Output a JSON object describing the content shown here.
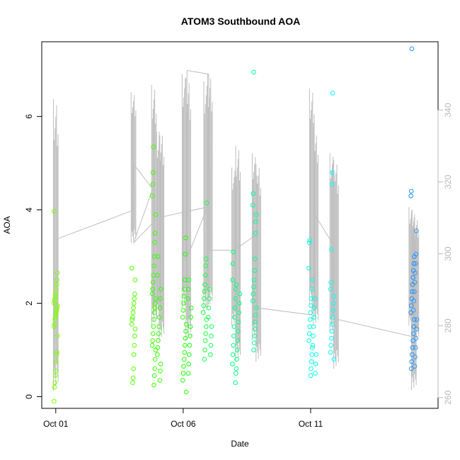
{
  "chart_data": {
    "type": "scatter",
    "title": "ATOM3 Southbound AOA",
    "xlabel": "Date",
    "ylabel": "AOA",
    "x_ticks": [
      "Oct 01",
      "Oct 06",
      "Oct 11"
    ],
    "x_tick_days": [
      0,
      5,
      10
    ],
    "xlim_days": [
      -0.55,
      15
    ],
    "ylim_left": [
      -0.25,
      7.6
    ],
    "y_ticks_left": [
      0,
      2,
      4,
      6
    ],
    "ylim_right": [
      257,
      359
    ],
    "y_ticks_right": [
      260,
      280,
      300,
      320,
      340
    ],
    "grid": false,
    "series": [
      {
        "values": [
          {
            "day": 0.0,
            "aoa": [
              -0.1,
              0.2,
              0.3,
              0.45,
              0.55,
              0.75,
              0.9,
              0.95,
              1.3,
              1.5,
              1.55,
              1.65,
              1.7,
              1.75,
              1.8,
              1.85,
              1.9,
              1.95,
              2.0,
              2.05,
              2.1,
              2.15,
              2.2,
              2.3,
              2.4,
              2.5,
              2.65,
              3.97
            ],
            "color": "#7FFF00"
          },
          {
            "day": 3.05,
            "aoa": [
              0.3,
              0.4,
              0.6,
              0.9,
              1.1,
              1.3,
              1.45,
              1.55,
              1.65,
              1.7,
              1.8,
              1.9,
              2.0,
              2.1,
              2.2,
              2.5,
              2.75
            ],
            "color": "#55FF00"
          },
          {
            "day": 3.85,
            "aoa": [
              0.25,
              0.45,
              0.6,
              0.8,
              1.0,
              1.1,
              1.2,
              1.35,
              1.5,
              1.65,
              1.8,
              1.9,
              2.0,
              2.1,
              2.2,
              2.3,
              2.45,
              2.6,
              2.8,
              3.0,
              3.3,
              3.5,
              3.9,
              4.3,
              4.55,
              4.8,
              5.35
            ],
            "color": "#3CFF00"
          },
          {
            "day": 4.05,
            "aoa": [
              0.35,
              0.55,
              0.7,
              0.9,
              1.05,
              1.2,
              1.35,
              1.5,
              1.7,
              1.9,
              2.1,
              2.3,
              2.6,
              3.0
            ],
            "color": "#2DFF00"
          },
          {
            "day": 5.05,
            "aoa": [
              0.1,
              0.35,
              0.5,
              0.65,
              0.8,
              0.95,
              1.1,
              1.25,
              1.4,
              1.55,
              1.7,
              1.85,
              2.0,
              2.15,
              2.3,
              2.5,
              3.05,
              3.4
            ],
            "color": "#22FF00"
          },
          {
            "day": 5.25,
            "aoa": [
              0.5,
              0.7,
              0.9,
              1.1,
              1.3,
              1.5,
              1.7,
              1.9,
              2.1,
              2.3,
              2.5
            ],
            "color": "#19FF10"
          },
          {
            "day": 5.85,
            "aoa": [
              0.8,
              1.0,
              1.2,
              1.35,
              1.5,
              1.65,
              1.8,
              1.95,
              2.1,
              2.25,
              2.4,
              2.6,
              2.8,
              2.95,
              4.15
            ],
            "color": "#14FF40"
          },
          {
            "day": 6.05,
            "aoa": [
              0.9,
              1.1,
              1.3,
              1.5,
              1.7,
              1.9,
              2.1,
              2.3
            ],
            "color": "#10FF55"
          },
          {
            "day": 7.0,
            "aoa": [
              0.3,
              0.5,
              0.7,
              0.9,
              1.1,
              1.3,
              1.5,
              1.7,
              1.9,
              2.1,
              2.3,
              2.5,
              2.85,
              3.1
            ],
            "color": "#00FF80"
          },
          {
            "day": 7.15,
            "aoa": [
              0.6,
              0.8,
              1.0,
              1.2,
              1.4,
              1.6,
              1.8,
              2.0,
              2.2,
              2.4
            ],
            "color": "#00FF88"
          },
          {
            "day": 7.8,
            "aoa": [
              1.0,
              1.15,
              1.3,
              1.45,
              1.6,
              1.75,
              1.9,
              2.05,
              2.2,
              2.35,
              2.5,
              2.7,
              2.95,
              3.5,
              3.75,
              3.9,
              4.1,
              4.35,
              6.95
            ],
            "color": "#00FF99"
          },
          {
            "day": 10.0,
            "aoa": [
              0.45,
              0.6,
              0.75,
              0.9,
              1.05,
              1.2,
              1.35,
              1.5,
              1.65,
              1.8,
              1.95,
              2.1,
              2.3,
              2.5,
              2.75,
              3.3,
              3.35
            ],
            "color": "#00FFE0"
          },
          {
            "day": 10.15,
            "aoa": [
              0.5,
              0.7,
              0.9,
              1.1,
              1.3,
              1.5,
              1.7,
              1.9,
              2.1
            ],
            "color": "#00FFEA"
          },
          {
            "day": 10.85,
            "aoa": [
              0.8,
              0.95,
              1.1,
              1.25,
              1.4,
              1.55,
              1.7,
              1.85,
              2.0,
              2.15,
              2.3,
              2.45,
              3.15,
              4.55,
              4.8,
              6.5
            ],
            "color": "#00FFFF"
          },
          {
            "day": 14.0,
            "aoa": [
              0.6,
              0.75,
              0.9,
              1.05,
              1.2,
              1.35,
              1.5,
              1.65,
              1.8,
              1.95,
              2.1,
              2.25,
              2.4,
              2.55,
              2.7,
              2.85,
              3.0,
              4.3,
              4.4,
              7.45
            ],
            "color": "#1E90FF"
          },
          {
            "day": 14.1,
            "aoa": [
              0.65,
              0.85,
              1.05,
              1.25,
              1.45,
              1.65,
              1.85,
              2.05,
              2.25,
              2.45,
              2.65,
              2.85,
              3.05,
              3.55
            ],
            "color": "#2C9CFF"
          }
        ]
      },
      {
        "color": "#bebebe",
        "axis": "right",
        "values": [
          {
            "day": 0.0,
            "low": 262,
            "high": 343
          },
          {
            "day": 3.05,
            "low": 303,
            "high": 345
          },
          {
            "day": 3.85,
            "low": 280,
            "high": 347
          },
          {
            "day": 4.05,
            "low": 282,
            "high": 334
          },
          {
            "day": 4.15,
            "low": 276,
            "high": 334
          },
          {
            "day": 5.05,
            "low": 285,
            "high": 350
          },
          {
            "day": 5.2,
            "low": 276,
            "high": 349
          },
          {
            "day": 5.9,
            "low": 284,
            "high": 348
          },
          {
            "day": 6.05,
            "low": 285,
            "high": 350
          },
          {
            "day": 7.0,
            "low": 280,
            "high": 324
          },
          {
            "day": 7.15,
            "low": 270,
            "high": 330
          },
          {
            "day": 7.8,
            "low": 276,
            "high": 328
          },
          {
            "day": 7.95,
            "low": 270,
            "high": 325
          },
          {
            "day": 10.05,
            "low": 286,
            "high": 346
          },
          {
            "day": 10.2,
            "low": 280,
            "high": 334
          },
          {
            "day": 10.85,
            "low": 278,
            "high": 328
          },
          {
            "day": 11.0,
            "low": 268,
            "high": 326
          },
          {
            "day": 13.95,
            "low": 280,
            "high": 313
          },
          {
            "day": 14.05,
            "low": 262,
            "high": 312
          },
          {
            "day": 14.15,
            "low": 276,
            "high": 310
          }
        ],
        "path": [
          {
            "day": 0.0,
            "val": 304
          },
          {
            "day": 3.0,
            "val": 312
          },
          {
            "day": 3.05,
            "val": 325
          },
          {
            "day": 3.8,
            "val": 318
          },
          {
            "day": 3.05,
            "val": 303
          },
          {
            "day": 4.0,
            "val": 310
          },
          {
            "day": 5.95,
            "val": 313
          },
          {
            "day": 5.1,
            "val": 298
          },
          {
            "day": 5.15,
            "val": 351
          },
          {
            "day": 6.0,
            "val": 350
          },
          {
            "day": 6.05,
            "val": 301
          },
          {
            "day": 7.0,
            "val": 301
          },
          {
            "day": 7.8,
            "val": 305
          },
          {
            "day": 7.85,
            "val": 285
          },
          {
            "day": 10.05,
            "val": 283
          },
          {
            "day": 10.15,
            "val": 311
          },
          {
            "day": 10.85,
            "val": 303
          },
          {
            "day": 10.9,
            "val": 282
          },
          {
            "day": 13.95,
            "val": 277
          }
        ]
      }
    ]
  }
}
